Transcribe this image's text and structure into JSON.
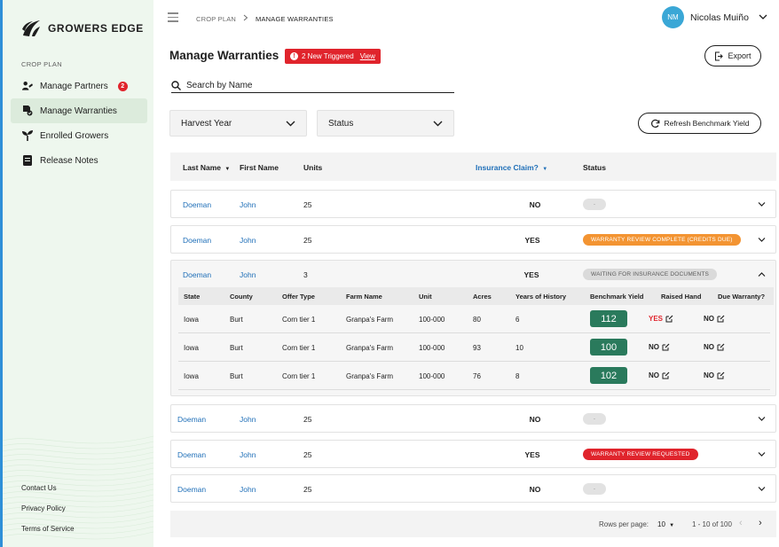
{
  "brand": {
    "name": "GROWERS EDGE"
  },
  "sidebar": {
    "section_label": "CROP PLAN",
    "items": [
      {
        "label": "Manage Partners",
        "badge": "2",
        "icon": "handshake-icon"
      },
      {
        "label": "Manage Warranties",
        "icon": "warranty-icon"
      },
      {
        "label": "Enrolled Growers",
        "icon": "sprout-icon"
      },
      {
        "label": "Release Notes",
        "icon": "notes-icon"
      }
    ],
    "footer": [
      "Contact Us",
      "Privacy Policy",
      "Terms of Service"
    ]
  },
  "breadcrumb": {
    "parent": "CROP PLAN",
    "current": "MANAGE WARRANTIES"
  },
  "user": {
    "initials": "NM",
    "name": "Nicolas Muiño"
  },
  "page": {
    "title": "Manage Warranties",
    "alert": {
      "text": "2 New Triggered",
      "link": "View"
    },
    "export_label": "Export"
  },
  "search": {
    "placeholder": "Search by Name"
  },
  "filters": {
    "harvest_year": "Harvest Year",
    "status": "Status",
    "refresh_label": "Refresh Benchmark Yield"
  },
  "table": {
    "headers": {
      "last_name": "Last Name",
      "first_name": "First Name",
      "units": "Units",
      "insurance_claim": "Insurance Claim?",
      "status": "Status"
    },
    "rows": [
      {
        "last": "Doeman",
        "first": "John",
        "units": "25",
        "claim": "NO",
        "status": "-",
        "status_type": "blank"
      },
      {
        "last": "Doeman",
        "first": "John",
        "units": "25",
        "claim": "YES",
        "status": "WARRANTY REVIEW COMPLETE (CREDITS DUE)",
        "status_type": "orange"
      },
      {
        "last": "Doeman",
        "first": "John",
        "units": "3",
        "claim": "YES",
        "status": "WAITING FOR INSURANCE DOCUMENTS",
        "status_type": "grey"
      },
      {
        "last": "Doeman",
        "first": "John",
        "units": "25",
        "claim": "NO",
        "status": "-",
        "status_type": "blank"
      },
      {
        "last": "Doeman",
        "first": "John",
        "units": "25",
        "claim": "YES",
        "status": "WARRANTY REVIEW REQUESTED",
        "status_type": "red"
      },
      {
        "last": "Doeman",
        "first": "John",
        "units": "25",
        "claim": "NO",
        "status": "-",
        "status_type": "blank"
      }
    ],
    "detail": {
      "headers": {
        "state": "State",
        "county": "County",
        "offer": "Offer Type",
        "farm": "Farm Name",
        "unit": "Unit",
        "acres": "Acres",
        "years": "Years of History",
        "yield": "Benchmark Yield",
        "raised": "Raised Hand",
        "due": "Due Warranty?"
      },
      "rows": [
        {
          "state": "Iowa",
          "county": "Burt",
          "offer": "Corn tier 1",
          "farm": "Granpa's Farm",
          "unit": "100-000",
          "acres": "80",
          "years": "6",
          "yield": "112",
          "raised": "YES",
          "due": "NO"
        },
        {
          "state": "Iowa",
          "county": "Burt",
          "offer": "Corn tier 1",
          "farm": "Granpa's Farm",
          "unit": "100-000",
          "acres": "93",
          "years": "10",
          "yield": "100",
          "raised": "NO",
          "due": "NO"
        },
        {
          "state": "Iowa",
          "county": "Burt",
          "offer": "Corn tier 1",
          "farm": "Granpa's Farm",
          "unit": "100-000",
          "acres": "76",
          "years": "8",
          "yield": "102",
          "raised": "NO",
          "due": "NO"
        }
      ]
    }
  },
  "pagination": {
    "rows_per_page_label": "Rows per page:",
    "rows_per_page": "10",
    "range": "1 - 10 of 100"
  },
  "colors": {
    "accent_blue": "#1f6fb8",
    "alert_red": "#e0242c",
    "yield_green": "#2a7a5c",
    "status_orange": "#f39432",
    "sidebar_bg": "#eef7ee"
  }
}
